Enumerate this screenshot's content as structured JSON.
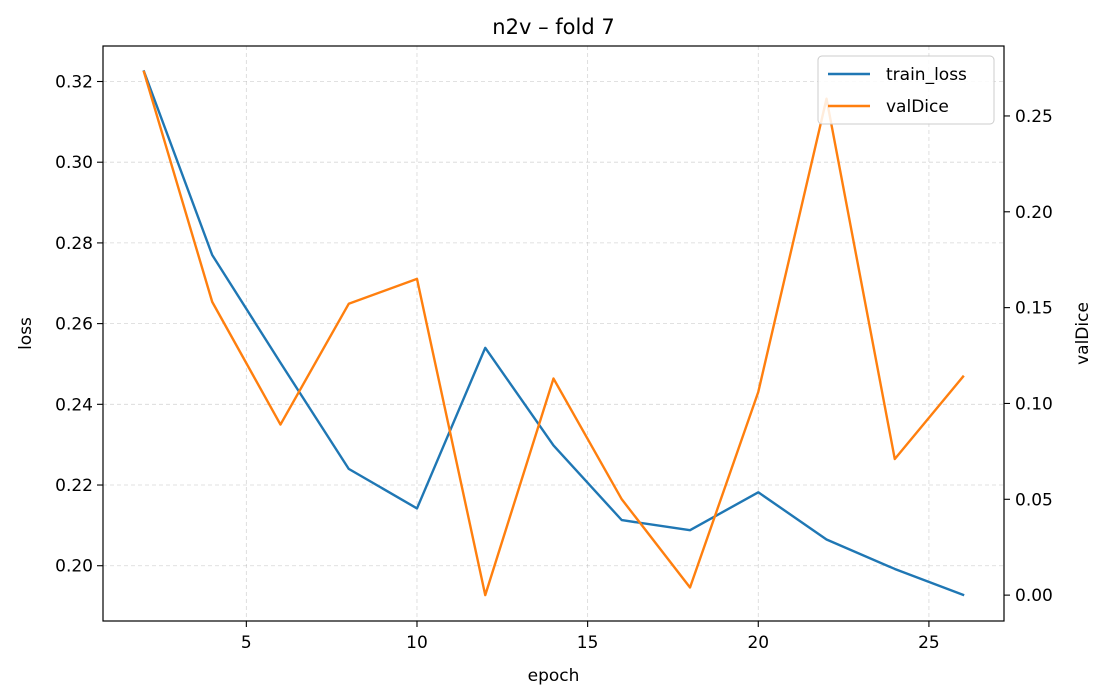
{
  "chart_data": {
    "type": "line",
    "title": "n2v – fold 7",
    "xlabel": "epoch",
    "ylabel": "loss",
    "y2label": "valDice",
    "x": [
      2,
      4,
      6,
      8,
      10,
      12,
      14,
      16,
      18,
      20,
      22,
      24,
      26
    ],
    "xlim": [
      0.8,
      27.2
    ],
    "ylim": [
      0.1863,
      0.3288
    ],
    "y2lim": [
      -0.0135,
      0.2865
    ],
    "xticks": [
      "5",
      "10",
      "15",
      "20",
      "25"
    ],
    "yticks": [
      "0.20",
      "0.22",
      "0.24",
      "0.26",
      "0.28",
      "0.30",
      "0.32"
    ],
    "y2ticks": [
      "0.00",
      "0.05",
      "0.10",
      "0.15",
      "0.20",
      "0.25"
    ],
    "grid": true,
    "legend_position": "top-right",
    "series": [
      {
        "name": "train_loss",
        "axis": "left",
        "color": "#1f77b4",
        "values": [
          0.3225,
          0.277,
          0.2503,
          0.224,
          0.2142,
          0.254,
          0.2298,
          0.2113,
          0.2088,
          0.2182,
          0.2065,
          0.1992,
          0.1928
        ]
      },
      {
        "name": "valDice",
        "axis": "right",
        "color": "#ff7f0e",
        "values": [
          0.273,
          0.153,
          0.089,
          0.152,
          0.165,
          0.0,
          0.113,
          0.05,
          0.004,
          0.106,
          0.259,
          0.071,
          0.114
        ]
      }
    ]
  }
}
